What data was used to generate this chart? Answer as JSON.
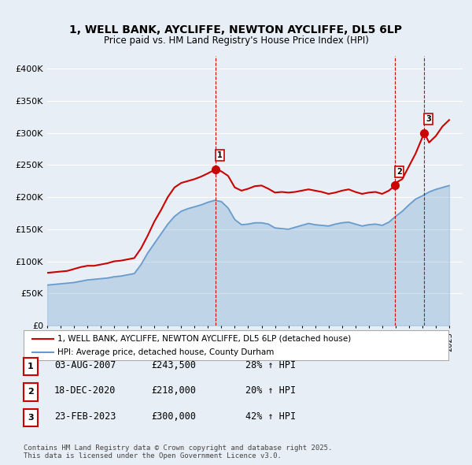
{
  "title": "1, WELL BANK, AYCLIFFE, NEWTON AYCLIFFE, DL5 6LP",
  "subtitle": "Price paid vs. HM Land Registry's House Price Index (HPI)",
  "bg_color": "#e8eef5",
  "plot_bg_color": "#e8eef5",
  "grid_color": "#ffffff",
  "ylim": [
    0,
    420000
  ],
  "yticks": [
    0,
    50000,
    100000,
    150000,
    200000,
    250000,
    300000,
    350000,
    400000
  ],
  "ytick_labels": [
    "£0",
    "£50K",
    "£100K",
    "£150K",
    "£200K",
    "£250K",
    "£300K",
    "£350K",
    "£400K"
  ],
  "xlabel_start": 1995,
  "xlabel_end": 2026,
  "red_line_color": "#cc0000",
  "blue_line_color": "#6699cc",
  "marker_color": "#cc0000",
  "vline_color": "#cc0000",
  "sale_markers": [
    {
      "date_num": 2007.58,
      "price": 243500,
      "label": "1"
    },
    {
      "date_num": 2020.96,
      "price": 218000,
      "label": "2"
    },
    {
      "date_num": 2023.14,
      "price": 300000,
      "label": "3"
    }
  ],
  "vline_dates": [
    2007.58,
    2020.96,
    2023.14
  ],
  "legend_entries": [
    "1, WELL BANK, AYCLIFFE, NEWTON AYCLIFFE, DL5 6LP (detached house)",
    "HPI: Average price, detached house, County Durham"
  ],
  "table_rows": [
    {
      "num": "1",
      "date": "03-AUG-2007",
      "price": "£243,500",
      "pct": "28% ↑ HPI"
    },
    {
      "num": "2",
      "date": "18-DEC-2020",
      "price": "£218,000",
      "pct": "20% ↑ HPI"
    },
    {
      "num": "3",
      "date": "23-FEB-2023",
      "price": "£300,000",
      "pct": "42% ↑ HPI"
    }
  ],
  "footer": "Contains HM Land Registry data © Crown copyright and database right 2025.\nThis data is licensed under the Open Government Licence v3.0.",
  "red_data": {
    "x": [
      1995.0,
      1995.5,
      1996.0,
      1996.5,
      1997.0,
      1997.5,
      1998.0,
      1998.5,
      1999.0,
      1999.5,
      2000.0,
      2000.5,
      2001.0,
      2001.5,
      2002.0,
      2002.5,
      2003.0,
      2003.5,
      2004.0,
      2004.5,
      2005.0,
      2005.5,
      2006.0,
      2006.5,
      2007.0,
      2007.58,
      2008.0,
      2008.5,
      2009.0,
      2009.5,
      2010.0,
      2010.5,
      2011.0,
      2011.5,
      2012.0,
      2012.5,
      2013.0,
      2013.5,
      2014.0,
      2014.5,
      2015.0,
      2015.5,
      2016.0,
      2016.5,
      2017.0,
      2017.5,
      2018.0,
      2018.5,
      2019.0,
      2019.5,
      2020.0,
      2020.5,
      2020.96,
      2021.0,
      2021.5,
      2022.0,
      2022.5,
      2023.14,
      2023.5,
      2024.0,
      2024.5,
      2025.0
    ],
    "y": [
      82000,
      83000,
      84000,
      85000,
      88000,
      91000,
      93000,
      93000,
      95000,
      97000,
      100000,
      101000,
      103000,
      105000,
      120000,
      140000,
      162000,
      180000,
      200000,
      215000,
      222000,
      225000,
      228000,
      232000,
      237000,
      243500,
      240000,
      233000,
      215000,
      210000,
      213000,
      217000,
      218000,
      213000,
      207000,
      208000,
      207000,
      208000,
      210000,
      212000,
      210000,
      208000,
      205000,
      207000,
      210000,
      212000,
      208000,
      205000,
      207000,
      208000,
      205000,
      210000,
      218000,
      222000,
      228000,
      248000,
      268000,
      300000,
      285000,
      295000,
      310000,
      320000
    ]
  },
  "blue_data": {
    "x": [
      1995.0,
      1995.5,
      1996.0,
      1996.5,
      1997.0,
      1997.5,
      1998.0,
      1998.5,
      1999.0,
      1999.5,
      2000.0,
      2000.5,
      2001.0,
      2001.5,
      2002.0,
      2002.5,
      2003.0,
      2003.5,
      2004.0,
      2004.5,
      2005.0,
      2005.5,
      2006.0,
      2006.5,
      2007.0,
      2007.5,
      2008.0,
      2008.5,
      2009.0,
      2009.5,
      2010.0,
      2010.5,
      2011.0,
      2011.5,
      2012.0,
      2012.5,
      2013.0,
      2013.5,
      2014.0,
      2014.5,
      2015.0,
      2015.5,
      2016.0,
      2016.5,
      2017.0,
      2017.5,
      2018.0,
      2018.5,
      2019.0,
      2019.5,
      2020.0,
      2020.5,
      2021.0,
      2021.5,
      2022.0,
      2022.5,
      2023.0,
      2023.5,
      2024.0,
      2024.5,
      2025.0
    ],
    "y": [
      63000,
      64000,
      65000,
      66000,
      67000,
      69000,
      71000,
      72000,
      73000,
      74000,
      76000,
      77000,
      79000,
      81000,
      95000,
      113000,
      128000,
      143000,
      158000,
      170000,
      178000,
      182000,
      185000,
      188000,
      192000,
      195000,
      193000,
      183000,
      165000,
      157000,
      158000,
      160000,
      160000,
      158000,
      152000,
      151000,
      150000,
      153000,
      156000,
      159000,
      157000,
      156000,
      155000,
      158000,
      160000,
      161000,
      158000,
      155000,
      157000,
      158000,
      156000,
      161000,
      170000,
      178000,
      188000,
      197000,
      202000,
      208000,
      212000,
      215000,
      218000
    ]
  }
}
